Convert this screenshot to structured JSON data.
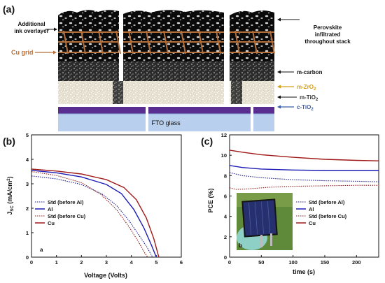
{
  "panel_a": {
    "label": "(a)",
    "labels": {
      "ink": [
        "Additional",
        "ink overlayer"
      ],
      "cu_grid": "Cu grid",
      "perovskite": [
        "Perovskite",
        "infiltrated",
        "throughout stack"
      ],
      "m_carbon": "m-carbon",
      "m_zro2": "m-ZrO",
      "m_tio2": "m-TiO",
      "c_tio2": "c-TiO",
      "sub2": "2",
      "fto": "FTO glass"
    },
    "colors": {
      "cu_grid": "#b5703a",
      "m_zro2": "#d4a017",
      "c_tio2": "#3a5fa8",
      "fto_purple": "#5a2d91",
      "fto_glass": "#b8d0ee"
    }
  },
  "chart_data": [
    {
      "type": "line",
      "panel_label": "(b)",
      "inner_label": "a",
      "xlabel": "Voltage (Volts)",
      "ylabel": "J",
      "ylabel_sub": "SC",
      "ylabel_unit": " (mA/cm",
      "ylabel_sup": "2",
      "ylabel_close": ")",
      "xlim": [
        0,
        6
      ],
      "ylim": [
        0,
        5
      ],
      "xticks": [
        "0",
        "1",
        "2",
        "3",
        "4",
        "5",
        "6"
      ],
      "yticks": [
        "0",
        "1",
        "2",
        "3",
        "4",
        "5"
      ],
      "legend_position": "lower-left",
      "series": [
        {
          "name": "Std (before Al)",
          "color": "#1a1a8c",
          "dash": "dot",
          "points": [
            [
              0,
              3.32
            ],
            [
              1,
              3.2
            ],
            [
              2,
              2.97
            ],
            [
              2.8,
              2.6
            ],
            [
              3.4,
              2.12
            ],
            [
              3.9,
              1.5
            ],
            [
              4.3,
              0.9
            ],
            [
              4.6,
              0.45
            ],
            [
              4.85,
              0
            ]
          ]
        },
        {
          "name": "Al",
          "color": "#1a1ab5",
          "dash": "solid",
          "points": [
            [
              0,
              3.55
            ],
            [
              1,
              3.45
            ],
            [
              2,
              3.28
            ],
            [
              3,
              2.97
            ],
            [
              3.6,
              2.6
            ],
            [
              4.1,
              1.95
            ],
            [
              4.5,
              1.2
            ],
            [
              4.8,
              0.5
            ],
            [
              5,
              0
            ]
          ]
        },
        {
          "name": "Std (before Cu)",
          "color": "#8b1a1a",
          "dash": "dot",
          "points": [
            [
              0,
              3.5
            ],
            [
              1,
              3.34
            ],
            [
              2,
              3.05
            ],
            [
              2.8,
              2.55
            ],
            [
              3.4,
              1.95
            ],
            [
              3.9,
              1.25
            ],
            [
              4.3,
              0.6
            ],
            [
              4.55,
              0.15
            ],
            [
              4.65,
              0
            ]
          ]
        },
        {
          "name": "Cu",
          "color": "#a01818",
          "dash": "solid",
          "points": [
            [
              0,
              3.6
            ],
            [
              1,
              3.52
            ],
            [
              2,
              3.4
            ],
            [
              3,
              3.17
            ],
            [
              3.7,
              2.85
            ],
            [
              4.2,
              2.35
            ],
            [
              4.6,
              1.6
            ],
            [
              4.9,
              0.75
            ],
            [
              5.1,
              0
            ]
          ]
        }
      ]
    },
    {
      "type": "line",
      "panel_label": "(c)",
      "inner_label": "b",
      "xlabel": "time (s)",
      "ylabel": "PCE (%)",
      "xlim": [
        0,
        235
      ],
      "ylim": [
        0,
        12
      ],
      "xticks": [
        "0",
        "50",
        "100",
        "150",
        "200"
      ],
      "yticks": [
        "0",
        "2",
        "4",
        "6",
        "8",
        "10",
        "12"
      ],
      "legend_position": "lower-right",
      "series": [
        {
          "name": "Std (before Al)",
          "color": "#1a1a8c",
          "dash": "dot",
          "points": [
            [
              0,
              8.3
            ],
            [
              20,
              8.0
            ],
            [
              50,
              7.8
            ],
            [
              100,
              7.6
            ],
            [
              150,
              7.5
            ],
            [
              200,
              7.45
            ],
            [
              235,
              7.4
            ]
          ]
        },
        {
          "name": "Al",
          "color": "#1a1ab5",
          "dash": "solid",
          "points": [
            [
              0,
              9.0
            ],
            [
              20,
              8.8
            ],
            [
              50,
              8.65
            ],
            [
              100,
              8.55
            ],
            [
              150,
              8.5
            ],
            [
              200,
              8.5
            ],
            [
              235,
              8.5
            ]
          ]
        },
        {
          "name": "Std (before Cu)",
          "color": "#8b1a1a",
          "dash": "dot",
          "points": [
            [
              0,
              6.8
            ],
            [
              10,
              6.65
            ],
            [
              30,
              6.7
            ],
            [
              60,
              6.85
            ],
            [
              100,
              6.95
            ],
            [
              150,
              7.0
            ],
            [
              200,
              7.05
            ],
            [
              235,
              7.05
            ]
          ]
        },
        {
          "name": "Cu",
          "color": "#a01818",
          "dash": "solid",
          "points": [
            [
              0,
              10.5
            ],
            [
              20,
              10.3
            ],
            [
              50,
              10.05
            ],
            [
              100,
              9.8
            ],
            [
              150,
              9.6
            ],
            [
              200,
              9.5
            ],
            [
              235,
              9.45
            ]
          ]
        }
      ]
    }
  ]
}
